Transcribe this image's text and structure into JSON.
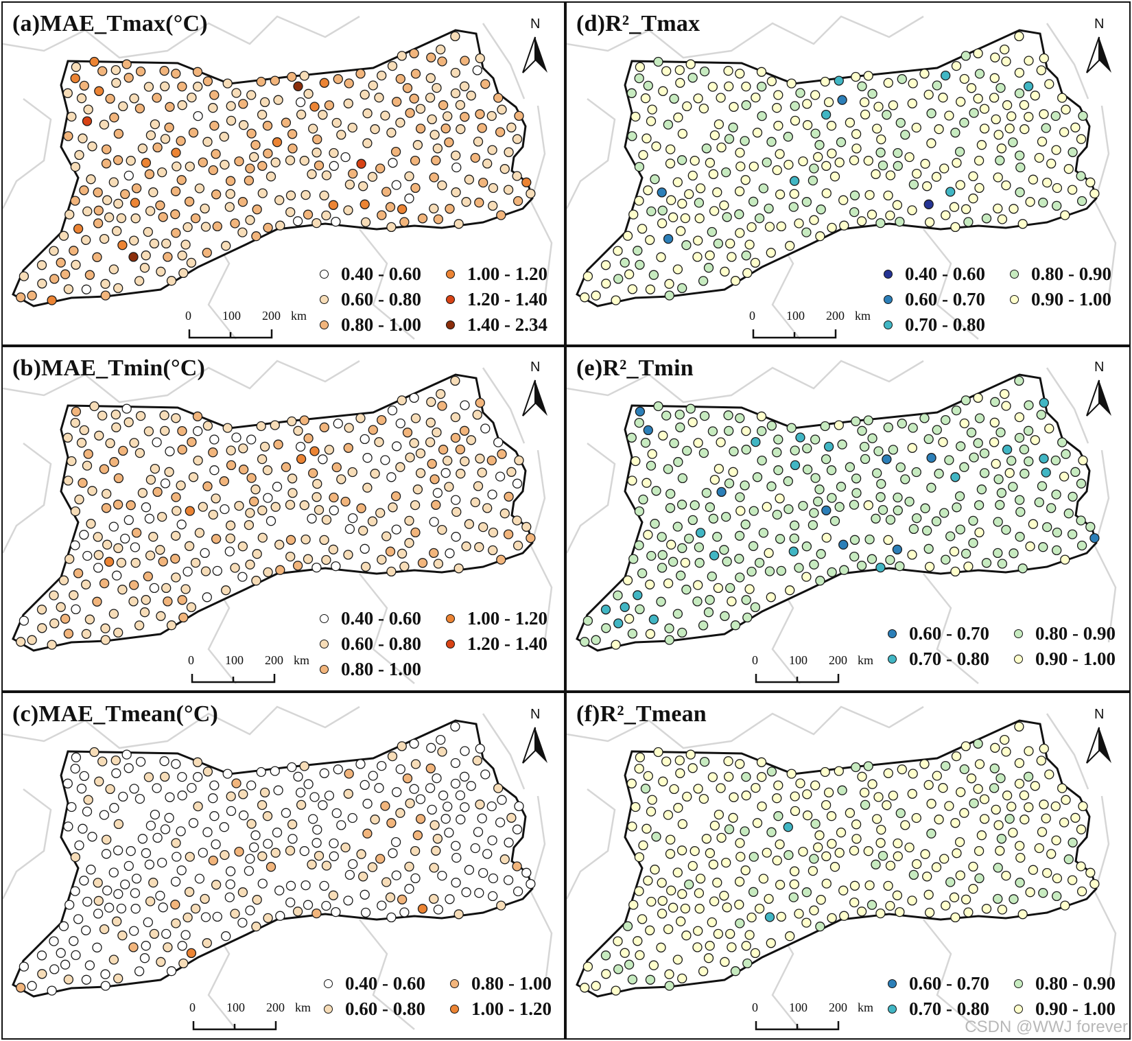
{
  "figure": {
    "scale_labels": [
      "0",
      "100",
      "200",
      "km"
    ],
    "north_label": "N",
    "watermark": "CSDN @WWJ forever"
  },
  "panels": [
    {
      "title": "(a)MAE_Tmax(°C)",
      "legend": [
        {
          "label": "0.40 - 0.60",
          "color": "#ffffff"
        },
        {
          "label": "1.00 - 1.20",
          "color": "#ec8434"
        },
        {
          "label": "0.60 - 0.80",
          "color": "#f7ddb8"
        },
        {
          "label": "1.20 - 1.40",
          "color": "#d84315"
        },
        {
          "label": "0.80 - 1.00",
          "color": "#f2b57c"
        },
        {
          "label": "1.40 - 2.34",
          "color": "#8b2e0b"
        }
      ]
    },
    {
      "title": "(d)R²_Tmax",
      "legend": [
        {
          "label": "0.40 - 0.60",
          "color": "#253494"
        },
        {
          "label": "0.80 - 0.90",
          "color": "#c7ebc0"
        },
        {
          "label": "0.60 - 0.70",
          "color": "#2c7fb8"
        },
        {
          "label": "0.90 - 1.00",
          "color": "#ffffcc"
        },
        {
          "label": "0.70 - 0.80",
          "color": "#41b6c4"
        }
      ]
    },
    {
      "title": "(b)MAE_Tmin(°C)",
      "legend": [
        {
          "label": "0.40 - 0.60",
          "color": "#ffffff"
        },
        {
          "label": "1.00 - 1.20",
          "color": "#ec8434"
        },
        {
          "label": "0.60 - 0.80",
          "color": "#f7ddb8"
        },
        {
          "label": "1.20 - 1.40",
          "color": "#d84315"
        },
        {
          "label": "0.80 - 1.00",
          "color": "#f2b57c"
        }
      ]
    },
    {
      "title": "(e)R²_Tmin",
      "legend": [
        {
          "label": "0.60 - 0.70",
          "color": "#2c7fb8"
        },
        {
          "label": "0.80 - 0.90",
          "color": "#c7ebc0"
        },
        {
          "label": "0.70 - 0.80",
          "color": "#41b6c4"
        },
        {
          "label": "0.90 - 1.00",
          "color": "#ffffcc"
        }
      ]
    },
    {
      "title": "(c)MAE_Tmean(°C)",
      "legend": [
        {
          "label": "0.40 - 0.60",
          "color": "#ffffff"
        },
        {
          "label": "0.80 - 1.00",
          "color": "#f2b57c"
        },
        {
          "label": "0.60 - 0.80",
          "color": "#f7ddb8"
        },
        {
          "label": "1.00 - 1.20",
          "color": "#ec8434"
        }
      ]
    },
    {
      "title": "(f)R²_Tmean",
      "legend": [
        {
          "label": "0.60 - 0.70",
          "color": "#2c7fb8"
        },
        {
          "label": "0.80 - 0.90",
          "color": "#c7ebc0"
        },
        {
          "label": "0.70 - 0.80",
          "color": "#41b6c4"
        },
        {
          "label": "0.90 - 1.00",
          "color": "#ffffcc"
        }
      ]
    }
  ]
}
